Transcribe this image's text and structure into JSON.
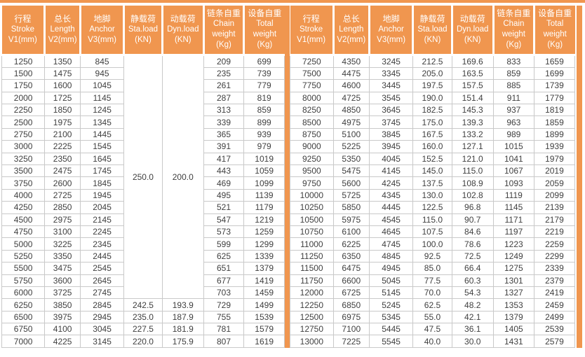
{
  "colors": {
    "accent_orange": "#F0964F",
    "grid_gray": "#C9C9C9",
    "header_text": "#FFFFFF",
    "cell_text": "#3F3F3F"
  },
  "table": {
    "columns": [
      [
        "行程",
        "Stroke",
        "V1(mm)"
      ],
      [
        "总长",
        "Length",
        "V2(mm)"
      ],
      [
        "地脚",
        "Anchor",
        "V3(mm)"
      ],
      [
        "静载荷",
        "Sta.load",
        "(KN)"
      ],
      [
        "动载荷",
        "Dyn.load",
        "(KN)"
      ],
      [
        "链条自重",
        "Chain",
        "weight",
        "(Kg)"
      ],
      [
        "设备自重",
        "Total",
        "weight",
        "(Kg)"
      ]
    ],
    "left": {
      "merged": {
        "sta_load": "250.0",
        "dyn_load": "200.0",
        "rows": 20
      },
      "rows": [
        [
          "1250",
          "1350",
          "845",
          null,
          null,
          "209",
          "699"
        ],
        [
          "1500",
          "1475",
          "945",
          null,
          null,
          "235",
          "739"
        ],
        [
          "1750",
          "1600",
          "1045",
          null,
          null,
          "261",
          "779"
        ],
        [
          "2000",
          "1725",
          "1145",
          null,
          null,
          "287",
          "819"
        ],
        [
          "2250",
          "1850",
          "1245",
          null,
          null,
          "313",
          "859"
        ],
        [
          "2500",
          "1975",
          "1345",
          null,
          null,
          "339",
          "899"
        ],
        [
          "2750",
          "2100",
          "1445",
          null,
          null,
          "365",
          "939"
        ],
        [
          "3000",
          "2225",
          "1545",
          null,
          null,
          "391",
          "979"
        ],
        [
          "3250",
          "2350",
          "1645",
          null,
          null,
          "417",
          "1019"
        ],
        [
          "3500",
          "2475",
          "1745",
          null,
          null,
          "443",
          "1059"
        ],
        [
          "3750",
          "2600",
          "1845",
          null,
          null,
          "469",
          "1099"
        ],
        [
          "4000",
          "2725",
          "1945",
          null,
          null,
          "495",
          "1139"
        ],
        [
          "4250",
          "2850",
          "2045",
          null,
          null,
          "521",
          "1179"
        ],
        [
          "4500",
          "2975",
          "2145",
          null,
          null,
          "547",
          "1219"
        ],
        [
          "4750",
          "3100",
          "2245",
          null,
          null,
          "573",
          "1259"
        ],
        [
          "5000",
          "3225",
          "2345",
          null,
          null,
          "599",
          "1299"
        ],
        [
          "5250",
          "3350",
          "2445",
          null,
          null,
          "625",
          "1339"
        ],
        [
          "5500",
          "3475",
          "2545",
          null,
          null,
          "651",
          "1379"
        ],
        [
          "5750",
          "3600",
          "2645",
          null,
          null,
          "677",
          "1419"
        ],
        [
          "6000",
          "3725",
          "2745",
          null,
          null,
          "703",
          "1459"
        ],
        [
          "6250",
          "3850",
          "2845",
          "242.5",
          "193.9",
          "729",
          "1499"
        ],
        [
          "6500",
          "3975",
          "2945",
          "235.0",
          "187.9",
          "755",
          "1539"
        ],
        [
          "6750",
          "4100",
          "3045",
          "227.5",
          "181.9",
          "781",
          "1579"
        ],
        [
          "7000",
          "4225",
          "3145",
          "220.0",
          "175.9",
          "807",
          "1619"
        ]
      ]
    },
    "right": {
      "rows": [
        [
          "7250",
          "4350",
          "3245",
          "212.5",
          "169.6",
          "833",
          "1659"
        ],
        [
          "7500",
          "4475",
          "3345",
          "205.0",
          "163.5",
          "859",
          "1699"
        ],
        [
          "7750",
          "4600",
          "3445",
          "197.5",
          "157.5",
          "885",
          "1739"
        ],
        [
          "8000",
          "4725",
          "3545",
          "190.0",
          "151.4",
          "911",
          "1779"
        ],
        [
          "8250",
          "4850",
          "3645",
          "182.5",
          "145.3",
          "937",
          "1819"
        ],
        [
          "8500",
          "4975",
          "3745",
          "175.0",
          "139.3",
          "963",
          "1859"
        ],
        [
          "8750",
          "5100",
          "3845",
          "167.5",
          "133.2",
          "989",
          "1899"
        ],
        [
          "9000",
          "5225",
          "3945",
          "160.0",
          "127.1",
          "1015",
          "1939"
        ],
        [
          "9250",
          "5350",
          "4045",
          "152.5",
          "121.0",
          "1041",
          "1979"
        ],
        [
          "9500",
          "5475",
          "4145",
          "145.0",
          "115.0",
          "1067",
          "2019"
        ],
        [
          "9750",
          "5600",
          "4245",
          "137.5",
          "108.9",
          "1093",
          "2059"
        ],
        [
          "10000",
          "5725",
          "4345",
          "130.0",
          "102.8",
          "1119",
          "2099"
        ],
        [
          "10250",
          "5850",
          "4445",
          "122.5",
          "96.8",
          "1145",
          "2139"
        ],
        [
          "10500",
          "5975",
          "4545",
          "115.0",
          "90.7",
          "1171",
          "2179"
        ],
        [
          "10750",
          "6100",
          "4645",
          "107.5",
          "84.6",
          "1197",
          "2219"
        ],
        [
          "11000",
          "6225",
          "4745",
          "100.0",
          "78.6",
          "1223",
          "2259"
        ],
        [
          "11250",
          "6350",
          "4845",
          "92.5",
          "72.5",
          "1249",
          "2299"
        ],
        [
          "11500",
          "6475",
          "4945",
          "85.0",
          "66.4",
          "1275",
          "2339"
        ],
        [
          "11750",
          "6600",
          "5045",
          "77.5",
          "60.3",
          "1301",
          "2379"
        ],
        [
          "12000",
          "6725",
          "5145",
          "70.0",
          "54.3",
          "1327",
          "2419"
        ],
        [
          "12250",
          "6850",
          "5245",
          "62.5",
          "48.2",
          "1353",
          "2459"
        ],
        [
          "12500",
          "6975",
          "5345",
          "55.0",
          "42.1",
          "1379",
          "2499"
        ],
        [
          "12750",
          "7100",
          "5445",
          "47.5",
          "36.1",
          "1405",
          "2539"
        ],
        [
          "13000",
          "7225",
          "5545",
          "40.0",
          "30.0",
          "1431",
          "2579"
        ]
      ]
    }
  }
}
